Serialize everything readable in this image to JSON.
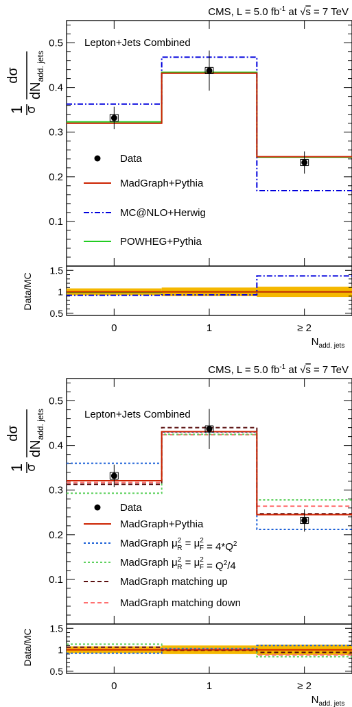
{
  "chart_data": [
    {
      "type": "step",
      "cms_label": "CMS, L = 5.0 fb",
      "cms_sup": "-1",
      "cms_at": " at ",
      "cms_s": "s",
      "cms_energy": " = 7 TeV",
      "channel": "Lepton+Jets Combined",
      "ylabel_top": "dσ",
      "ylabel_frac_one": "1",
      "ylabel_frac_sigma": "σ",
      "ylabel_bottom": "dN",
      "ylabel_sub": "add. jets",
      "xlabel": "N",
      "xlabel_sub": "add. jets",
      "categories": [
        "0",
        "1",
        "≥ 2"
      ],
      "ylim": [
        0,
        0.55
      ],
      "yticks": [
        "0.1",
        "0.2",
        "0.3",
        "0.4",
        "0.5"
      ],
      "data": {
        "name": "Data",
        "values": [
          0.332,
          0.438,
          0.232
        ],
        "err_stat": [
          0.008,
          0.007,
          0.007
        ],
        "err_tot": [
          0.025,
          0.045,
          0.025
        ]
      },
      "series": [
        {
          "name": "MadGraph+Pythia",
          "color": "#cc2200",
          "dash": "",
          "values": [
            0.32,
            0.432,
            0.245
          ]
        },
        {
          "name": "MC@NLO+Herwig",
          "color": "#0000dd",
          "dash": "8 3 2 3",
          "values": [
            0.363,
            0.468,
            0.169
          ]
        },
        {
          "name": "POWHEG+Pythia",
          "color": "#22cc22",
          "dash": "",
          "values": [
            0.323,
            0.434,
            0.244
          ]
        }
      ],
      "ratio": {
        "ylabel": "Data/MC",
        "ylim": [
          0.45,
          1.6
        ],
        "yticks": [
          "0.5",
          "1",
          "1.5"
        ],
        "band_color": "#f5b800",
        "band": [
          0.08,
          0.1,
          0.12
        ],
        "series": [
          {
            "color": "#cc2200",
            "dash": "",
            "values": [
              1.0,
              1.0,
              1.0
            ]
          },
          {
            "color": "#0000dd",
            "dash": "8 3 2 3",
            "values": [
              0.92,
              0.93,
              1.37
            ]
          },
          {
            "color": "#22cc22",
            "dash": "",
            "values": [
              0.99,
              1.0,
              1.0
            ]
          }
        ]
      }
    },
    {
      "type": "step",
      "cms_label": "CMS, L = 5.0 fb",
      "cms_sup": "-1",
      "cms_at": " at ",
      "cms_s": "s",
      "cms_energy": " = 7 TeV",
      "channel": "Lepton+Jets Combined",
      "ylabel_top": "dσ",
      "ylabel_frac_one": "1",
      "ylabel_frac_sigma": "σ",
      "ylabel_bottom": "dN",
      "ylabel_sub": "add. jets",
      "xlabel": "N",
      "xlabel_sub": "add. jets",
      "categories": [
        "0",
        "1",
        "≥ 2"
      ],
      "ylim": [
        0,
        0.55
      ],
      "yticks": [
        "0.1",
        "0.2",
        "0.3",
        "0.4",
        "0.5"
      ],
      "data": {
        "name": "Data",
        "values": [
          0.332,
          0.437,
          0.232
        ],
        "err_stat": [
          0.008,
          0.007,
          0.007
        ],
        "err_tot": [
          0.025,
          0.045,
          0.025
        ]
      },
      "series": [
        {
          "name": "MadGraph+Pythia",
          "color": "#cc2200",
          "dash": "",
          "values": [
            0.321,
            0.431,
            0.245
          ]
        },
        {
          "name_prefix": "MadGraph ",
          "name_formula": "μ²R = μ²F = 4*Q²",
          "color": "#1a5fd6",
          "dash": "3 3",
          "values": [
            0.36,
            0.43,
            0.212
          ]
        },
        {
          "name_prefix": "MadGraph ",
          "name_formula": "μ²R = μ²F = Q²/4",
          "color": "#5ed15e",
          "dash": "3 3",
          "values": [
            0.293,
            0.425,
            0.278
          ]
        },
        {
          "name": "MadGraph matching up",
          "color": "#5a0f0f",
          "dash": "6 4",
          "values": [
            0.313,
            0.44,
            0.247
          ]
        },
        {
          "name": "MadGraph matching down",
          "color": "#ff7070",
          "dash": "6 4",
          "values": [
            0.317,
            0.424,
            0.264
          ]
        }
      ],
      "ratio": {
        "ylabel": "Data/MC",
        "ylim": [
          0.45,
          1.6
        ],
        "yticks": [
          "0.5",
          "1",
          "1.5"
        ],
        "band_color": "#f5b800",
        "band": [
          0.08,
          0.1,
          0.12
        ],
        "series": [
          {
            "color": "#cc2200",
            "dash": "",
            "values": [
              1.0,
              1.0,
              1.0
            ]
          },
          {
            "color": "#1a5fd6",
            "dash": "3 3",
            "values": [
              0.92,
              1.02,
              1.1
            ]
          },
          {
            "color": "#5ed15e",
            "dash": "3 3",
            "values": [
              1.13,
              1.03,
              0.84
            ]
          },
          {
            "color": "#5a0f0f",
            "dash": "6 4",
            "values": [
              1.06,
              0.99,
              0.94
            ]
          },
          {
            "color": "#ff7070",
            "dash": "6 4",
            "values": [
              1.05,
              1.03,
              0.88
            ]
          }
        ]
      }
    }
  ]
}
